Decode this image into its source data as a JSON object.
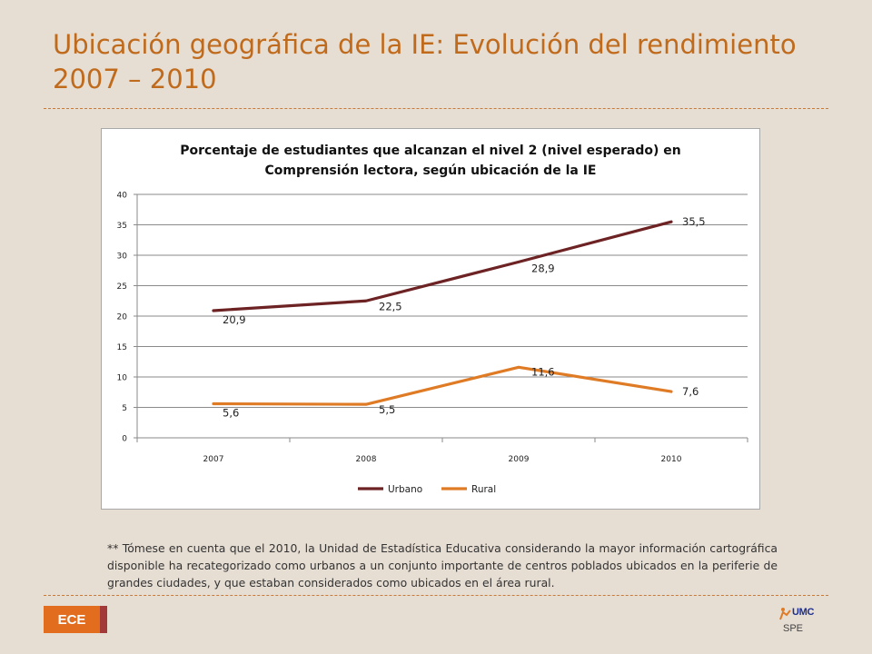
{
  "slide": {
    "title": "Ubicación geográfica de la IE: Evolución del rendimiento 2007 – 2010",
    "footnote": "** Tómese en cuenta que el 2010, la Unidad de Estadística Educativa considerando la mayor información cartográfica disponible ha recategorizado como urbanos a un conjunto importante de centros poblados ubicados en la periferie de grandes ciudades, y que estaban considerados como ubicados en el área rural.",
    "badge": "ECE",
    "logo_text": "UMC",
    "logo_sub": "SPE"
  },
  "chart_data": {
    "type": "line",
    "title_line1": "Porcentaje de estudiantes que alcanzan el nivel 2 (nivel esperado) en",
    "title_line2": "Comprensión lectora, según ubicación de la IE",
    "categories": [
      "2007",
      "2008",
      "2009",
      "2010"
    ],
    "series": [
      {
        "name": "Urbano",
        "values": [
          20.9,
          22.5,
          28.9,
          35.5
        ],
        "labels": [
          "20,9",
          "22,5",
          "28,9",
          "35,5"
        ],
        "color": "#6d2223"
      },
      {
        "name": "Rural",
        "values": [
          5.6,
          5.5,
          11.6,
          7.6
        ],
        "labels": [
          "5,6",
          "5,5",
          "11,6",
          "7,6"
        ],
        "color": "#e07b25"
      }
    ],
    "ylim": [
      0,
      40
    ],
    "yticks": [
      "0",
      "5",
      "10",
      "15",
      "20",
      "25",
      "30",
      "35",
      "40"
    ],
    "xlabel": "",
    "ylabel": "",
    "grid": true,
    "legend": "bottom"
  }
}
